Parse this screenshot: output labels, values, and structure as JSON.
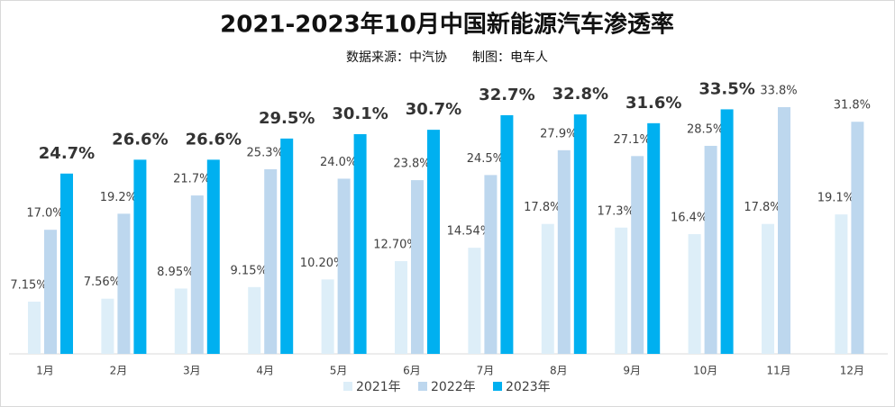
{
  "chart_data": {
    "type": "bar",
    "title": "2021-2023年10月中国新能源汽车渗透率",
    "subtitle": "数据来源：中汽协　　制图：电车人",
    "categories": [
      "1月",
      "2月",
      "3月",
      "4月",
      "5月",
      "6月",
      "7月",
      "8月",
      "9月",
      "10月",
      "11月",
      "12月"
    ],
    "series": [
      {
        "name": "2021年",
        "color": "#ddeef8",
        "values": [
          7.15,
          7.56,
          8.95,
          9.15,
          10.2,
          12.7,
          14.54,
          17.8,
          17.3,
          16.4,
          17.8,
          19.1
        ],
        "value_labels": [
          "7.15%",
          "7.56%",
          "8.95%",
          "9.15%",
          "10.20%",
          "12.70%",
          "14.54%",
          "17.8%",
          "17.3%",
          "16.4%",
          "17.8%",
          "19.1%"
        ]
      },
      {
        "name": "2022年",
        "color": "#bdd7ee",
        "values": [
          17.0,
          19.2,
          21.7,
          25.3,
          24.0,
          23.8,
          24.5,
          27.9,
          27.1,
          28.5,
          33.8,
          31.8
        ],
        "value_labels": [
          "17.0%",
          "19.2%",
          "21.7%",
          "25.3%",
          "24.0%",
          "23.8%",
          "24.5%",
          "27.9%",
          "27.1%",
          "28.5%",
          "33.8%",
          "31.8%"
        ]
      },
      {
        "name": "2023年",
        "color": "#00b0f0",
        "values": [
          24.7,
          26.6,
          26.6,
          29.5,
          30.1,
          30.7,
          32.7,
          32.8,
          31.6,
          33.5,
          null,
          null
        ],
        "value_labels": [
          "24.7%",
          "26.6%",
          "26.6%",
          "29.5%",
          "30.1%",
          "30.7%",
          "32.7%",
          "32.8%",
          "31.6%",
          "33.5%",
          null,
          null
        ]
      }
    ]
  }
}
